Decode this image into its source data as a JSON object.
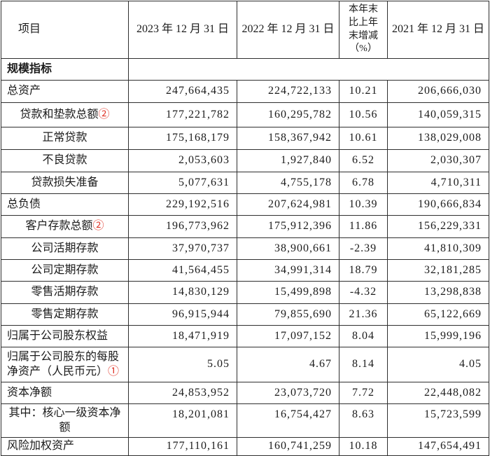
{
  "colors": {
    "marker_red": "#e03427",
    "text": "#1b1b1b",
    "border": "#2f2f2f"
  },
  "table": {
    "header": {
      "item": "项目",
      "col_2023": "2023 年 12 月 31 日",
      "col_2022": "2022 年 12 月 31 日",
      "col_change": "本年末\n比上年\n末增减\n（%）",
      "col_2021": "2021 年 12 月 31 日"
    },
    "section_title": "规模指标",
    "rows": [
      {
        "label": "总资产",
        "marker": "",
        "v2023": "247,664,435",
        "v2022": "224,722,133",
        "change": "10.21",
        "v2021": "206,666,030"
      },
      {
        "label": "贷款和垫款总额",
        "marker": "②",
        "v2023": "177,221,782",
        "v2022": "160,295,782",
        "change": "10.56",
        "v2021": "140,059,315"
      },
      {
        "label": "正常贷款",
        "marker": "",
        "v2023": "175,168,179",
        "v2022": "158,367,942",
        "change": "10.61",
        "v2021": "138,029,008"
      },
      {
        "label": "不良贷款",
        "marker": "",
        "v2023": "2,053,603",
        "v2022": "1,927,840",
        "change": "6.52",
        "v2021": "2,030,307"
      },
      {
        "label": "贷款损失准备",
        "marker": "",
        "v2023": "5,077,631",
        "v2022": "4,755,178",
        "change": "6.78",
        "v2021": "4,710,311"
      },
      {
        "label": "总负债",
        "marker": "",
        "v2023": "229,192,516",
        "v2022": "207,624,981",
        "change": "10.39",
        "v2021": "190,666,834"
      },
      {
        "label": "客户存款总额",
        "marker": "②",
        "v2023": "196,773,962",
        "v2022": "175,912,396",
        "change": "11.86",
        "v2021": "156,229,331"
      },
      {
        "label": "公司活期存款",
        "marker": "",
        "v2023": "37,970,737",
        "v2022": "38,900,661",
        "change": "-2.39",
        "v2021": "41,810,309"
      },
      {
        "label": "公司定期存款",
        "marker": "",
        "v2023": "41,564,455",
        "v2022": "34,991,314",
        "change": "18.79",
        "v2021": "32,181,285"
      },
      {
        "label": "零售活期存款",
        "marker": "",
        "v2023": "14,830,129",
        "v2022": "15,499,898",
        "change": "-4.32",
        "v2021": "13,298,838"
      },
      {
        "label": "零售定期存款",
        "marker": "",
        "v2023": "96,915,944",
        "v2022": "79,855,690",
        "change": "21.36",
        "v2021": "65,122,669"
      },
      {
        "label": "归属于公司股东权益",
        "marker": "",
        "v2023": "18,471,919",
        "v2022": "17,097,152",
        "change": "8.04",
        "v2021": "15,999,196"
      },
      {
        "label": "归属于公司股东的每股\n净资产（人民币元）",
        "marker": "①",
        "v2023": "5.05",
        "v2022": "4.67",
        "change": "8.14",
        "v2021": "4.05"
      },
      {
        "label": "资本净额",
        "marker": "",
        "v2023": "24,853,952",
        "v2022": "23,073,720",
        "change": "7.72",
        "v2021": "22,448,082"
      },
      {
        "label": "其中：核心一级资本净\n额",
        "marker": "",
        "v2023": "18,201,081",
        "v2022": "16,754,427",
        "change": "8.63",
        "v2021": "15,723,599"
      },
      {
        "label": "风险加权资产",
        "marker": "",
        "v2023": "177,110,161",
        "v2022": "160,741,259",
        "change": "10.18",
        "v2021": "147,654,491"
      }
    ]
  }
}
